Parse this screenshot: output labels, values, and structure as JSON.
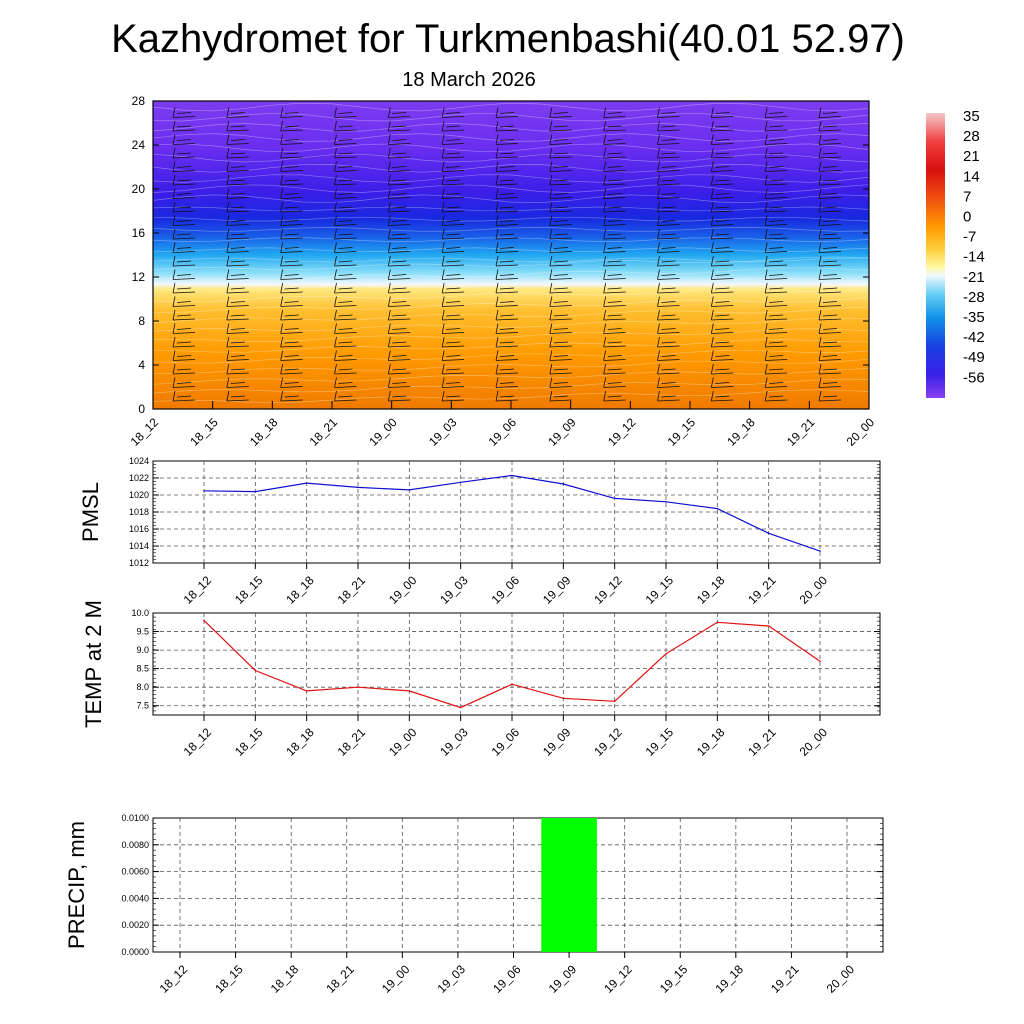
{
  "header": {
    "title": "Kazhydromet for Turkmenbashi(40.01 52.97)",
    "subtitle": "18 March 2026"
  },
  "colors": {
    "pmsl_line": "#1010d0",
    "temp_line": "#e01010",
    "precip_bar": "#00ff00",
    "grid": "#555555"
  },
  "chart_data": [
    {
      "type": "heatmap",
      "title": "",
      "x": [
        "18_12",
        "18_15",
        "18_18",
        "18_21",
        "19_00",
        "19_03",
        "19_06",
        "19_09",
        "19_12",
        "19_15",
        "19_18",
        "19_21",
        "20_00"
      ],
      "ylim": [
        0,
        28
      ],
      "yticks": [
        0,
        4,
        8,
        12,
        16,
        20,
        24,
        28
      ],
      "colorbar": {
        "labels": [
          "35",
          "28",
          "21",
          "14",
          "7",
          "0",
          "-7",
          "-14",
          "-21",
          "-28",
          "-35",
          "-42",
          "-49",
          "-56"
        ]
      },
      "overlay": "wind barbs"
    },
    {
      "type": "line",
      "ylabel": "PMSL",
      "x": [
        "18_12",
        "18_15",
        "18_18",
        "18_21",
        "19_00",
        "19_03",
        "19_06",
        "19_09",
        "19_12",
        "19_15",
        "19_18",
        "19_21",
        "20_00"
      ],
      "values": [
        1020.5,
        1020.4,
        1021.4,
        1020.9,
        1020.6,
        1021.5,
        1022.3,
        1021.3,
        1019.6,
        1019.2,
        1018.4,
        1015.5,
        1013.4
      ],
      "ylim": [
        1012,
        1024
      ],
      "yticks": [
        "1012",
        "1014",
        "1016",
        "1018",
        "1020",
        "1022",
        "1024"
      ],
      "grid": true
    },
    {
      "type": "line",
      "ylabel": "TEMP at 2 M",
      "x": [
        "18_12",
        "18_15",
        "18_18",
        "18_21",
        "19_00",
        "19_03",
        "19_06",
        "19_09",
        "19_12",
        "19_15",
        "19_18",
        "19_21",
        "20_00"
      ],
      "values": [
        9.8,
        8.45,
        7.9,
        8.0,
        7.9,
        7.45,
        8.08,
        7.7,
        7.62,
        8.9,
        9.75,
        9.65,
        8.7
      ],
      "ylim": [
        7.25,
        10.0
      ],
      "yticks": [
        "7.5",
        "8.0",
        "8.5",
        "9.0",
        "9.5",
        "10.0"
      ],
      "grid": true
    },
    {
      "type": "bar",
      "ylabel": "PRECIP, mm",
      "x": [
        "18_12",
        "18_15",
        "18_18",
        "18_21",
        "19_00",
        "19_03",
        "19_06",
        "19_09",
        "19_12",
        "19_15",
        "19_18",
        "19_21",
        "20_00"
      ],
      "values": [
        0,
        0,
        0,
        0,
        0,
        0,
        0,
        0.01,
        0,
        0,
        0,
        0,
        0
      ],
      "ylim": [
        0,
        0.01
      ],
      "yticks": [
        "0.0000",
        "0.0020",
        "0.0040",
        "0.0060",
        "0.0080",
        "0.0100"
      ],
      "grid": true
    }
  ]
}
